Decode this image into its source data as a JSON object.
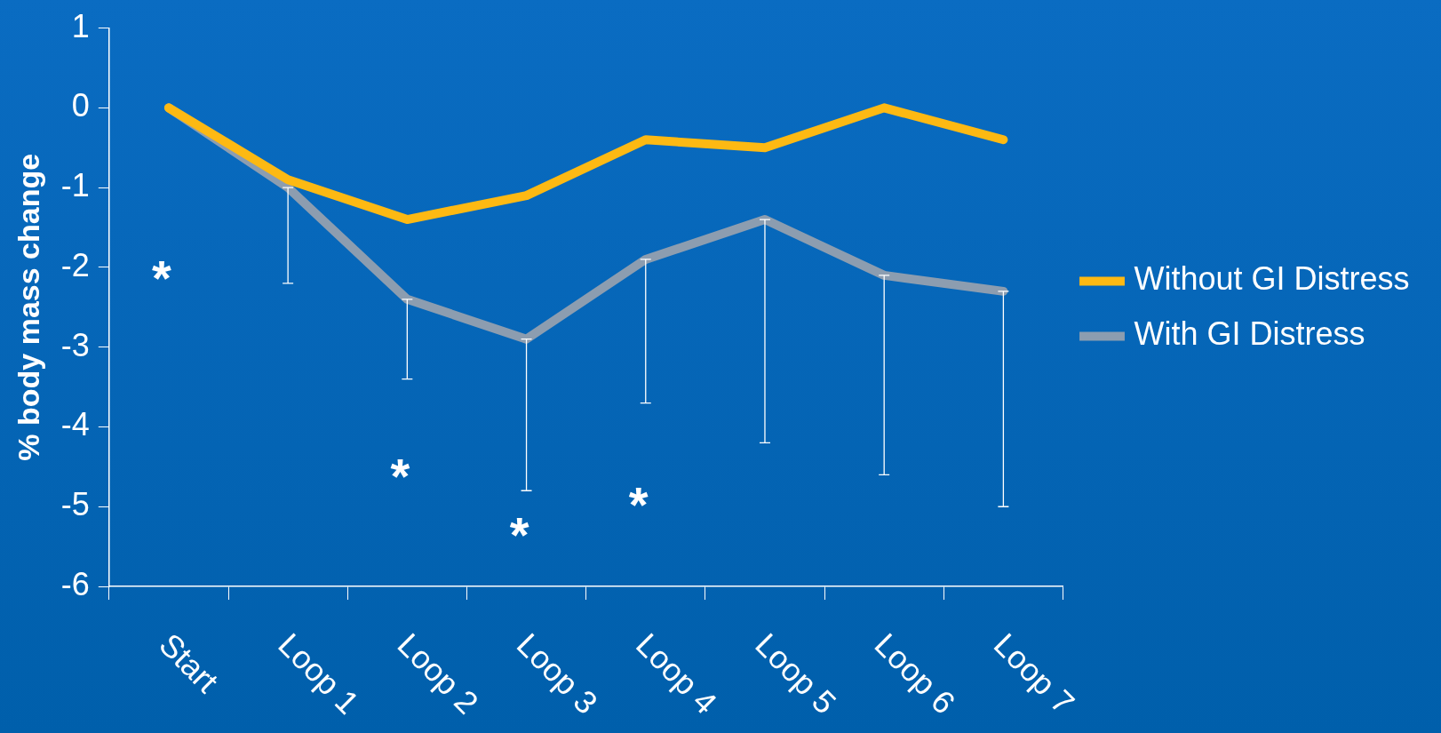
{
  "chart_data": {
    "type": "line",
    "ylabel": "% body mass change",
    "categories": [
      "Start",
      "Loop 1",
      "Loop 2",
      "Loop 3",
      "Loop 4",
      "Loop 5",
      "Loop 6",
      "Loop 7"
    ],
    "series": [
      {
        "name": "Without GI Distress",
        "color": "#fdb913",
        "values": [
          0,
          -0.9,
          -1.4,
          -1.1,
          -0.4,
          -0.5,
          0,
          -0.4
        ]
      },
      {
        "name": "With GI Distress",
        "color": "#8c9db0",
        "values": [
          0,
          -1.0,
          -2.4,
          -2.9,
          -1.9,
          -1.4,
          -2.1,
          -2.3
        ],
        "errors": [
          null,
          [
            -2.2,
            -1.0
          ],
          [
            -3.4,
            -2.4
          ],
          [
            -4.8,
            -2.9
          ],
          [
            -3.7,
            -1.9
          ],
          [
            -4.2,
            -1.4
          ],
          [
            -4.6,
            -2.1
          ],
          [
            -5.0,
            -2.3
          ]
        ]
      }
    ],
    "ylim": [
      -6,
      1
    ],
    "yticks": [
      -6,
      -5,
      -4,
      -3,
      -2,
      -1,
      0,
      1
    ],
    "annotations": [
      "*",
      "*",
      "*",
      "*"
    ],
    "grid": false,
    "legend": "right",
    "marker": "none",
    "line_style": "solid"
  }
}
